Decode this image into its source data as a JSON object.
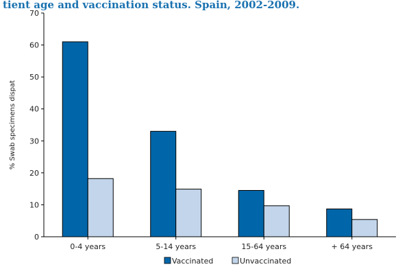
{
  "chart_data": {
    "type": "bar",
    "title": "tient age and vaccination status. Spain, 2002-2009.",
    "ylabel": "% Swab specimens dispat",
    "xlabel": "",
    "categories": [
      "0-4 years",
      "5-14 years",
      "15-64 years",
      "+ 64 years"
    ],
    "series": [
      {
        "name": "Vaccinated",
        "values": [
          61.0,
          33.0,
          14.5,
          8.7
        ],
        "color": "#0066a9"
      },
      {
        "name": "Unvaccinated",
        "values": [
          18.2,
          14.9,
          9.7,
          5.4
        ],
        "color": "#c2d5ea"
      }
    ],
    "ylim": [
      0,
      70
    ],
    "yticks": [
      0,
      10,
      20,
      30,
      40,
      50,
      60,
      70
    ],
    "grid": false,
    "legend_position": "bottom-center"
  }
}
